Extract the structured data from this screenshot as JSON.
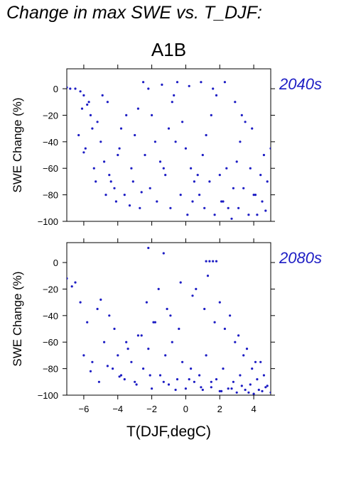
{
  "page_title": "Change in max SWE vs. T_DJF:",
  "scenario": "A1B",
  "colors": {
    "points": "#1c1cc4",
    "axis": "#000000"
  },
  "chart_data": [
    {
      "type": "scatter",
      "panel_label": "2040s",
      "ylabel": "SWE Change (%)",
      "xlabel": "",
      "xlim": [
        -7.0,
        5.0
      ],
      "ylim": [
        -100,
        15
      ],
      "xticks": [
        -6,
        -4,
        -2,
        0,
        2,
        4
      ],
      "yticks": [
        0,
        -20,
        -40,
        -60,
        -80,
        -100
      ],
      "yticklabels": [
        "0",
        "−20",
        "−40",
        "−60",
        "−80",
        "−100"
      ],
      "show_x_tick_labels": false,
      "grid": false,
      "x": [
        -7.0,
        -6.8,
        -6.5,
        -6.2,
        -6.0,
        -5.8,
        -5.6,
        -6.3,
        -5.9,
        -5.5,
        -5.2,
        -5.0,
        -4.8,
        -5.4,
        -6.0,
        -6.1,
        -5.7,
        -4.9,
        -4.5,
        -4.2,
        -4.0,
        -3.8,
        -3.5,
        -4.6,
        -4.4,
        -3.9,
        -3.2,
        -3.0,
        -2.8,
        -2.5,
        -2.2,
        -2.0,
        -1.8,
        -1.5,
        -1.2,
        -1.0,
        -0.8,
        -0.5,
        -0.2,
        0.0,
        0.3,
        0.5,
        0.8,
        1.0,
        1.2,
        1.5,
        1.8,
        2.0,
        2.2,
        2.5,
        2.8,
        3.0,
        3.2,
        3.5,
        3.8,
        4.0,
        4.2,
        4.5,
        4.8,
        5.0,
        -3.6,
        -3.1,
        -2.7,
        -2.4,
        -2.1,
        -1.7,
        -1.3,
        -0.9,
        -0.6,
        -0.3,
        0.1,
        0.4,
        0.7,
        1.1,
        1.4,
        1.7,
        2.1,
        2.4,
        2.7,
        3.1,
        3.4,
        3.7,
        4.1,
        4.4,
        4.7,
        -1.4,
        -0.7,
        0.2,
        0.9,
        1.6,
        2.3,
        2.9,
        3.3,
        3.9,
        4.6,
        -5.3,
        -4.7,
        -4.1,
        -3.3,
        -2.6
      ],
      "y": [
        1,
        0,
        0,
        -2,
        -5,
        -12,
        -20,
        -35,
        -45,
        -30,
        -25,
        -40,
        -55,
        -60,
        -48,
        -15,
        -10,
        -5,
        -65,
        -75,
        -50,
        -30,
        -20,
        -10,
        -70,
        -45,
        -60,
        -35,
        -15,
        5,
        0,
        -20,
        -40,
        -55,
        -65,
        -30,
        -10,
        5,
        -25,
        -45,
        -60,
        -70,
        -80,
        -50,
        -35,
        -20,
        -5,
        -65,
        -85,
        -90,
        -75,
        -55,
        -40,
        -25,
        -60,
        -80,
        -95,
        -85,
        -70,
        -45,
        -80,
        -70,
        -90,
        -50,
        -75,
        -85,
        -60,
        -90,
        -40,
        -80,
        -95,
        -85,
        -65,
        -90,
        -70,
        -95,
        -85,
        -60,
        -98,
        -90,
        -75,
        -95,
        -80,
        -65,
        -92,
        3,
        -5,
        2,
        5,
        0,
        5,
        -10,
        -20,
        -30,
        -50,
        -70,
        -80,
        -85,
        -88,
        -78
      ]
    },
    {
      "type": "scatter",
      "panel_label": "2080s",
      "ylabel": "SWE Change (%)",
      "xlabel": "T(DJF,degC)",
      "xlim": [
        -7.0,
        5.0
      ],
      "ylim": [
        -100,
        15
      ],
      "xticks": [
        -6,
        -4,
        -2,
        0,
        2,
        4
      ],
      "xticklabels": [
        "−6",
        "−4",
        "−2",
        "0",
        "2",
        "4"
      ],
      "yticks": [
        0,
        -20,
        -40,
        -60,
        -80,
        -100
      ],
      "yticklabels": [
        "0",
        "−20",
        "−40",
        "−60",
        "−80",
        "−100"
      ],
      "show_x_tick_labels": true,
      "grid": false,
      "x": [
        -7.0,
        -6.7,
        -6.5,
        -6.2,
        -5.8,
        -5.5,
        -5.2,
        -5.0,
        -4.8,
        -4.5,
        -4.2,
        -4.0,
        -3.8,
        -3.5,
        -3.2,
        -3.0,
        -2.8,
        -2.5,
        -2.2,
        -2.0,
        -1.8,
        -1.5,
        -1.2,
        -1.0,
        -0.8,
        -0.5,
        -0.2,
        0.0,
        0.3,
        0.5,
        0.8,
        1.0,
        1.2,
        1.5,
        1.8,
        2.0,
        2.2,
        2.5,
        2.8,
        3.0,
        3.2,
        3.5,
        3.8,
        4.0,
        4.2,
        4.5,
        4.8,
        5.0,
        -2.3,
        -1.6,
        -0.9,
        -0.3,
        0.4,
        1.1,
        1.7,
        2.3,
        2.9,
        3.4,
        3.9,
        4.4,
        -4.3,
        -3.6,
        -2.9,
        -2.1,
        -1.3,
        -0.6,
        0.2,
        0.9,
        1.5,
        2.1,
        2.7,
        3.3,
        3.7,
        4.3,
        4.7,
        -2.2,
        -1.3,
        1.2,
        1.4,
        1.6,
        1.8,
        -3.4,
        -2.6,
        -1.9,
        -1.1,
        -0.4,
        0.6,
        1.3,
        2.0,
        2.6,
        3.1,
        3.6,
        4.1,
        4.6,
        -6.0,
        -5.6,
        -5.1,
        -4.6,
        -3.9
      ],
      "y": [
        -12,
        -18,
        -15,
        -30,
        -45,
        -75,
        -35,
        -28,
        -60,
        -40,
        -50,
        -70,
        -85,
        -60,
        -75,
        -90,
        -55,
        -80,
        -65,
        -95,
        -45,
        -85,
        -70,
        -92,
        -60,
        -88,
        -75,
        -95,
        -80,
        -90,
        -85,
        -96,
        -70,
        -94,
        -88,
        -97,
        -80,
        -95,
        -90,
        -98,
        -85,
        -96,
        -92,
        -99,
        -88,
        -97,
        -93,
        -98,
        -30,
        -20,
        -40,
        -15,
        -25,
        -35,
        -45,
        -50,
        -60,
        -70,
        -80,
        -75,
        -80,
        -88,
        -92,
        -85,
        -90,
        -96,
        -88,
        -94,
        -90,
        -97,
        -95,
        -93,
        -98,
        -96,
        -94,
        11,
        7,
        1,
        1,
        1,
        1,
        -65,
        -55,
        -45,
        -35,
        -50,
        -20,
        -10,
        -30,
        -40,
        -55,
        -65,
        -75,
        -85,
        -70,
        -82,
        -90,
        -78,
        -86
      ]
    }
  ]
}
